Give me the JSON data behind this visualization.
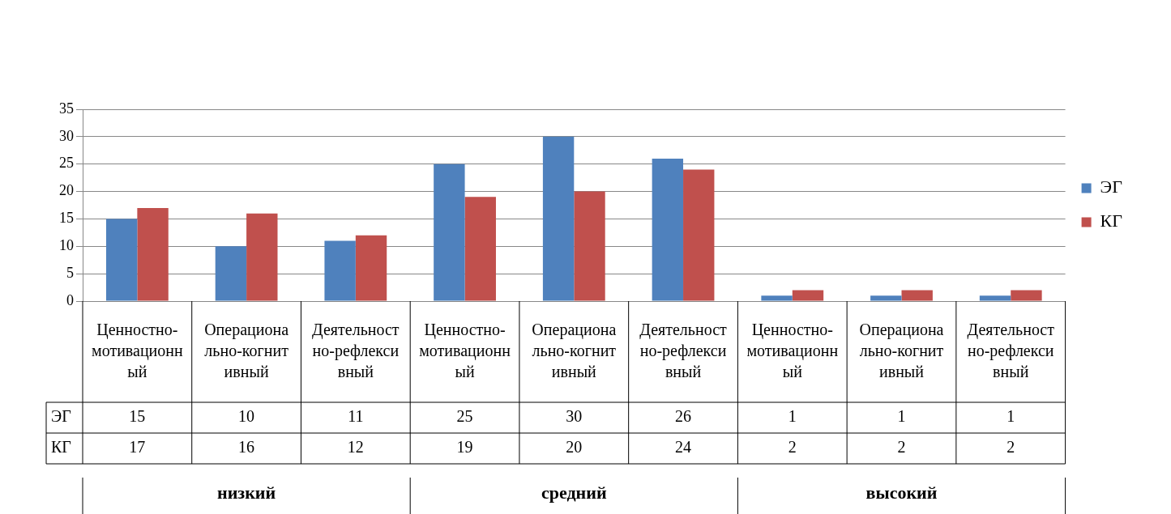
{
  "chart_data": {
    "type": "bar",
    "categories": [
      "Ценностно-мотивационный",
      "Операционально-когнитивный",
      "Деятельностно-рефлексивный",
      "Ценностно-мотивационный",
      "Операционально-когнитивный",
      "Деятельностно-рефлексивный",
      "Ценностно-мотивационный",
      "Операционально-когнитивный",
      "Деятельностно-рефлексивный"
    ],
    "series": [
      {
        "name": "ЭГ",
        "color": "#4f81bd",
        "values": [
          15,
          10,
          11,
          25,
          30,
          26,
          1,
          1,
          1
        ]
      },
      {
        "name": "КГ",
        "color": "#c0504d",
        "values": [
          17,
          16,
          12,
          19,
          20,
          24,
          2,
          2,
          2
        ]
      }
    ],
    "ylim": [
      0,
      35
    ],
    "yticks": [
      0,
      5,
      10,
      15,
      20,
      25,
      30,
      35
    ],
    "grid": "y",
    "legend": "right",
    "data_labels": true,
    "annotations": [
      "низкий",
      "средний",
      "высокий"
    ]
  }
}
